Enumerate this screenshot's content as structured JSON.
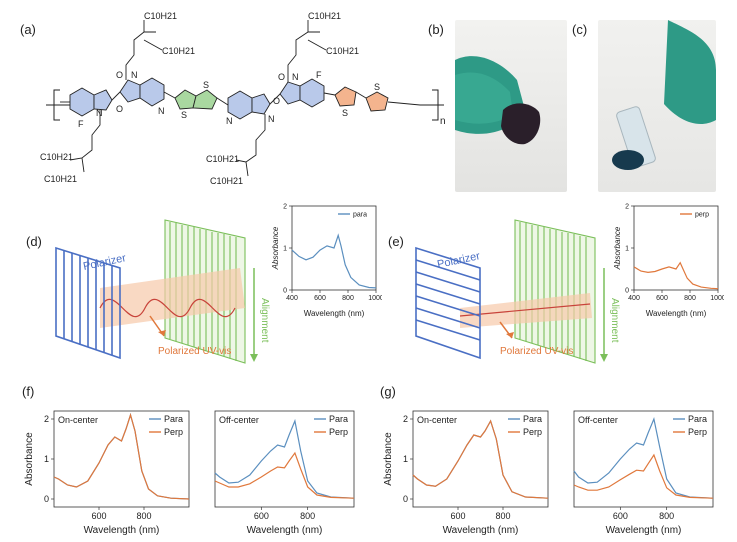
{
  "panel_labels": {
    "a": "(a)",
    "b": "(b)",
    "c": "(c)",
    "d": "(d)",
    "e": "(e)",
    "f": "(f)",
    "g": "(g)"
  },
  "structure": {
    "chain_label": "C10H21",
    "fluorine": "F",
    "nitrogen": "N",
    "oxygen": "O",
    "sulfur": "S",
    "repeat": "n"
  },
  "setup_d": {
    "polarizer": "Polarizer",
    "alignment": "Alignment",
    "beam": "Polarized UV-vis",
    "inset_legend": "para"
  },
  "setup_e": {
    "polarizer": "Polarizer",
    "alignment": "Alignment",
    "beam": "Polarized UV-vis",
    "inset_legend": "perp"
  },
  "colors": {
    "para": "#5b8fbf",
    "perp": "#e0783c",
    "polarizer": "#4a6fc4",
    "alignment": "#7bbf5a",
    "beam": "#f0b08a"
  },
  "chart_data": [
    {
      "id": "inset_d",
      "type": "line",
      "xlabel": "Wavelength (nm)",
      "ylabel": "Absorbance",
      "xlim": [
        400,
        1000
      ],
      "ylim": [
        0,
        2
      ],
      "xticks": [
        400,
        600,
        800,
        1000
      ],
      "yticks": [
        0,
        1,
        2
      ],
      "series": [
        {
          "name": "para",
          "color": "#5b8fbf",
          "x": [
            400,
            450,
            500,
            550,
            600,
            650,
            700,
            730,
            750,
            780,
            820,
            880,
            950,
            1000
          ],
          "y": [
            0.95,
            0.8,
            0.72,
            0.78,
            0.95,
            1.05,
            1.0,
            1.3,
            1.05,
            0.6,
            0.3,
            0.12,
            0.06,
            0.05
          ]
        }
      ]
    },
    {
      "id": "inset_e",
      "type": "line",
      "xlabel": "Wavelength (nm)",
      "ylabel": "Absorbance",
      "xlim": [
        400,
        1000
      ],
      "ylim": [
        0,
        2
      ],
      "xticks": [
        400,
        600,
        800,
        1000
      ],
      "yticks": [
        0,
        1,
        2
      ],
      "series": [
        {
          "name": "perp",
          "color": "#e0783c",
          "x": [
            400,
            450,
            500,
            550,
            600,
            650,
            700,
            730,
            750,
            780,
            820,
            880,
            950,
            1000
          ],
          "y": [
            0.55,
            0.45,
            0.42,
            0.44,
            0.5,
            0.55,
            0.5,
            0.65,
            0.5,
            0.28,
            0.14,
            0.07,
            0.04,
            0.03
          ]
        }
      ]
    },
    {
      "id": "f_on",
      "type": "line",
      "title": "On-center",
      "xlabel": "Wavelength (nm)",
      "ylabel": "Absorbance",
      "xlim": [
        400,
        1000
      ],
      "ylim": [
        -0.2,
        2.2
      ],
      "xticks": [
        600,
        800
      ],
      "yticks": [
        0,
        1,
        2
      ],
      "series": [
        {
          "name": "Para",
          "color": "#5b8fbf",
          "x": [
            400,
            420,
            460,
            500,
            550,
            600,
            640,
            670,
            700,
            720,
            740,
            760,
            790,
            820,
            860,
            920,
            1000
          ],
          "y": [
            0.55,
            0.5,
            0.35,
            0.3,
            0.45,
            0.9,
            1.35,
            1.55,
            1.45,
            1.75,
            2.1,
            1.7,
            0.7,
            0.25,
            0.08,
            0.02,
            0.0
          ]
        },
        {
          "name": "Perp",
          "color": "#e0783c",
          "x": [
            400,
            420,
            460,
            500,
            550,
            600,
            640,
            670,
            700,
            720,
            740,
            760,
            790,
            820,
            860,
            920,
            1000
          ],
          "y": [
            0.55,
            0.5,
            0.35,
            0.3,
            0.45,
            0.9,
            1.35,
            1.55,
            1.45,
            1.75,
            2.1,
            1.7,
            0.7,
            0.25,
            0.08,
            0.02,
            0.0
          ]
        }
      ]
    },
    {
      "id": "f_off",
      "type": "line",
      "title": "Off-center",
      "xlabel": "Wavelength (nm)",
      "ylabel": "",
      "xlim": [
        400,
        1000
      ],
      "ylim": [
        -0.2,
        2.2
      ],
      "xticks": [
        600,
        800
      ],
      "yticks": [],
      "series": [
        {
          "name": "Para",
          "color": "#5b8fbf",
          "x": [
            400,
            420,
            460,
            500,
            550,
            600,
            640,
            670,
            700,
            720,
            745,
            770,
            800,
            840,
            900,
            1000
          ],
          "y": [
            0.65,
            0.55,
            0.4,
            0.42,
            0.6,
            0.95,
            1.2,
            1.35,
            1.3,
            1.6,
            1.95,
            1.2,
            0.45,
            0.15,
            0.05,
            0.02
          ]
        },
        {
          "name": "Perp",
          "color": "#e0783c",
          "x": [
            400,
            420,
            460,
            500,
            550,
            600,
            640,
            670,
            700,
            720,
            745,
            770,
            800,
            840,
            900,
            1000
          ],
          "y": [
            0.45,
            0.4,
            0.3,
            0.3,
            0.38,
            0.55,
            0.7,
            0.8,
            0.78,
            0.95,
            1.15,
            0.75,
            0.3,
            0.1,
            0.04,
            0.02
          ]
        }
      ]
    },
    {
      "id": "g_on",
      "type": "line",
      "title": "On-center",
      "xlabel": "Wavelength (nm)",
      "ylabel": "Absorbance",
      "xlim": [
        400,
        1000
      ],
      "ylim": [
        -0.2,
        2.2
      ],
      "xticks": [
        600,
        800
      ],
      "yticks": [
        0,
        1,
        2
      ],
      "series": [
        {
          "name": "Para",
          "color": "#5b8fbf",
          "x": [
            400,
            420,
            460,
            500,
            550,
            600,
            640,
            670,
            700,
            720,
            745,
            770,
            800,
            840,
            900,
            1000
          ],
          "y": [
            0.6,
            0.5,
            0.35,
            0.32,
            0.5,
            0.95,
            1.35,
            1.6,
            1.55,
            1.7,
            1.95,
            1.5,
            0.6,
            0.18,
            0.05,
            0.02
          ]
        },
        {
          "name": "Perp",
          "color": "#e0783c",
          "x": [
            400,
            420,
            460,
            500,
            550,
            600,
            640,
            670,
            700,
            720,
            745,
            770,
            800,
            840,
            900,
            1000
          ],
          "y": [
            0.6,
            0.5,
            0.35,
            0.32,
            0.5,
            0.95,
            1.35,
            1.6,
            1.55,
            1.7,
            1.95,
            1.5,
            0.6,
            0.18,
            0.05,
            0.02
          ]
        }
      ]
    },
    {
      "id": "g_off",
      "type": "line",
      "title": "Off-center",
      "xlabel": "Wavelength (nm)",
      "ylabel": "",
      "xlim": [
        400,
        1000
      ],
      "ylim": [
        -0.2,
        2.2
      ],
      "xticks": [
        600,
        800
      ],
      "yticks": [],
      "series": [
        {
          "name": "Para",
          "color": "#5b8fbf",
          "x": [
            400,
            420,
            460,
            500,
            550,
            600,
            640,
            670,
            700,
            720,
            745,
            770,
            800,
            840,
            900,
            1000
          ],
          "y": [
            0.7,
            0.55,
            0.4,
            0.42,
            0.65,
            1.0,
            1.25,
            1.4,
            1.35,
            1.65,
            2.0,
            1.3,
            0.5,
            0.15,
            0.05,
            0.02
          ]
        },
        {
          "name": "Perp",
          "color": "#e0783c",
          "x": [
            400,
            420,
            460,
            500,
            550,
            600,
            640,
            670,
            700,
            720,
            745,
            770,
            800,
            840,
            900,
            1000
          ],
          "y": [
            0.35,
            0.3,
            0.22,
            0.22,
            0.3,
            0.48,
            0.62,
            0.72,
            0.7,
            0.88,
            1.1,
            0.7,
            0.28,
            0.1,
            0.04,
            0.02
          ]
        }
      ]
    }
  ]
}
